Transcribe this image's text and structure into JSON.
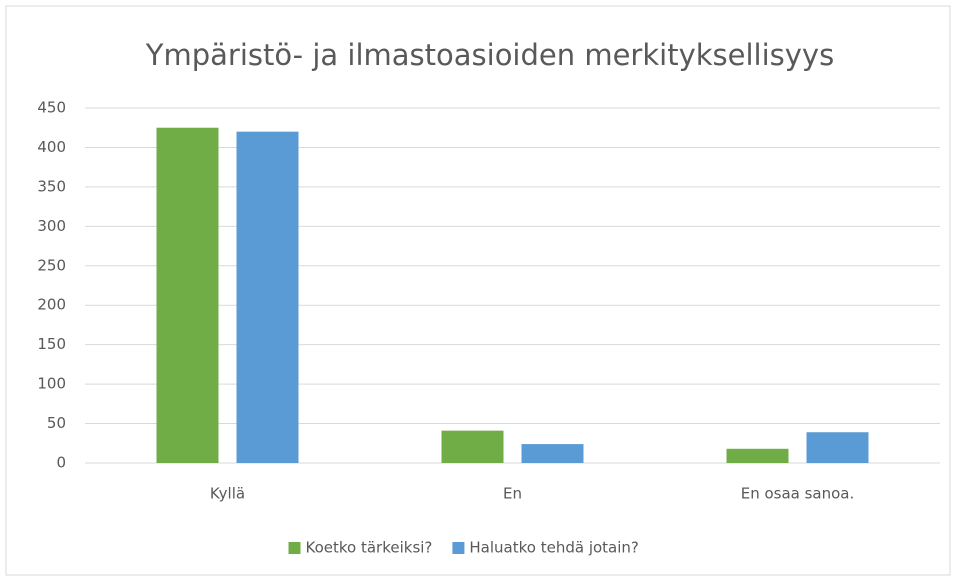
{
  "chart_data": {
    "type": "bar",
    "title": "Ympäristö- ja ilmastoasioiden merkityksellisyys",
    "categories": [
      "Kyllä",
      "En",
      "En osaa sanoa."
    ],
    "series": [
      {
        "name": "Koetko tärkeiksi?",
        "color": "#70ad47",
        "values": [
          425,
          41,
          18
        ]
      },
      {
        "name": "Haluatko tehdä jotain?",
        "color": "#5b9bd5",
        "values": [
          420,
          24,
          39
        ]
      }
    ],
    "ylim": [
      0,
      450
    ],
    "yticks": [
      0,
      50,
      100,
      150,
      200,
      250,
      300,
      350,
      400,
      450
    ],
    "grid": true,
    "legend": "bottom"
  }
}
